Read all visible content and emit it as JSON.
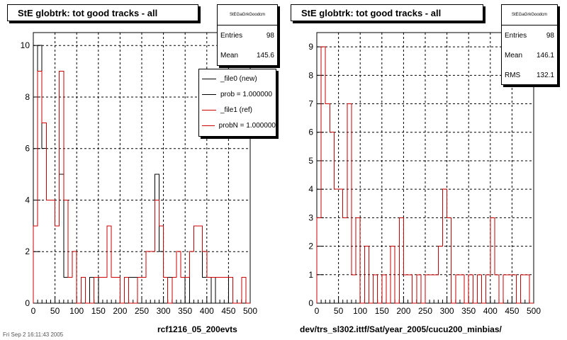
{
  "colors": {
    "new": "#000000",
    "ref": "#cc0000",
    "grid": "#000000"
  },
  "left": {
    "title": "StE globtrk: tot good tracks - all",
    "stats": {
      "name": "StEGaGrkGoodcm",
      "entries_label": "Entries",
      "entries": "98",
      "mean_label": "Mean",
      "mean": "145.6"
    },
    "legend": [
      "_file0 (new)",
      "prob = 1.000000",
      "_file1 (ref)",
      "probN = 1.000000"
    ],
    "xtitle": "rcf1216_05_200evts"
  },
  "right": {
    "title": "StE globtrk: tot good tracks - all",
    "stats": {
      "name": "StEGaGrkGoodcm",
      "entries_label": "Entries",
      "entries": "98",
      "mean_label": "Mean",
      "mean": "146.1",
      "rms_label": "RMS",
      "rms": "132.1"
    },
    "xtitle": "dev/trs_sl302.ittf/Sat/year_2005/cucu200_minbias/"
  },
  "footer_text": "Fri Sep 2 16:11:43 2005",
  "chart_data": [
    {
      "type": "histogram",
      "title": "StE globtrk: tot good tracks - all",
      "xlabel": "rcf1216_05_200evts",
      "xlim": [
        0,
        500
      ],
      "ylim": [
        0,
        10.5
      ],
      "xticks": [
        0,
        50,
        100,
        150,
        200,
        250,
        300,
        350,
        400,
        450,
        500
      ],
      "yticks": [
        0,
        2,
        4,
        6,
        8,
        10
      ],
      "bin_width": 10,
      "grid": true,
      "series": [
        {
          "name": "_file0 (new)",
          "color": "#000000",
          "values": [
            3,
            10,
            6,
            4,
            4,
            3,
            5,
            1,
            1,
            2,
            0,
            0,
            0,
            1,
            0,
            1,
            1,
            3,
            1,
            1,
            0,
            0,
            1,
            1,
            1,
            1,
            2,
            2,
            5,
            2,
            1,
            1,
            1,
            2,
            1,
            0,
            2,
            3,
            3,
            1,
            1,
            0,
            1,
            1,
            1,
            0,
            0,
            0,
            0,
            0
          ]
        },
        {
          "name": "_file1 (ref)",
          "color": "#cc0000",
          "values": [
            3,
            9,
            7,
            4,
            4,
            3,
            9,
            4,
            1,
            2,
            0,
            1,
            0,
            0,
            1,
            1,
            1,
            3,
            1,
            1,
            0,
            1,
            0,
            0,
            1,
            1,
            2,
            2,
            4,
            3,
            1,
            0,
            1,
            2,
            1,
            1,
            2,
            3,
            3,
            2,
            1,
            1,
            1,
            1,
            1,
            1,
            0,
            0,
            1,
            0
          ]
        }
      ]
    },
    {
      "type": "histogram",
      "title": "StE globtrk: tot good tracks - all",
      "xlabel": "dev/trs_sl302.ittf/Sat/year_2005/cucu200_minbias/",
      "xlim": [
        0,
        500
      ],
      "ylim": [
        0,
        9.5
      ],
      "xticks": [
        0,
        50,
        100,
        150,
        200,
        250,
        300,
        350,
        400,
        450,
        500
      ],
      "yticks": [
        0,
        1,
        2,
        3,
        4,
        5,
        6,
        7,
        8,
        9
      ],
      "bin_width": 10,
      "grid": true,
      "series": [
        {
          "name": "_file1 (ref)",
          "color": "#cc0000",
          "values": [
            3,
            9,
            7,
            6,
            4,
            4,
            3,
            7,
            1,
            3,
            0,
            2,
            0,
            1,
            0,
            1,
            0,
            2,
            0,
            3,
            1,
            1,
            0,
            1,
            0,
            1,
            1,
            1,
            2,
            4,
            3,
            0,
            1,
            1,
            0,
            1,
            0,
            1,
            0,
            1,
            3,
            1,
            0,
            1,
            1,
            1,
            0,
            1,
            1,
            0
          ]
        }
      ]
    }
  ]
}
